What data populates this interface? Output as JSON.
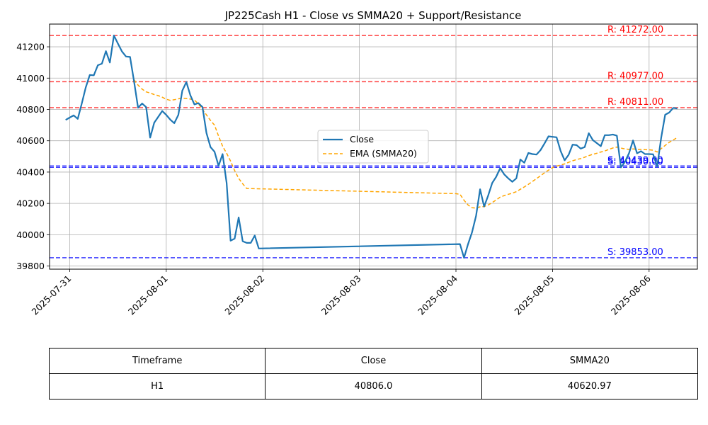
{
  "chart_data": {
    "type": "line",
    "title": "JP225Cash H1 - Close vs SMMA20 + Support/Resistance",
    "xlabel": "",
    "ylabel": "",
    "grid": true,
    "legend_position": "center-right",
    "x_ticks": [
      "2025-07-31",
      "2025-08-01",
      "2025-08-02",
      "2025-08-03",
      "2025-08-04",
      "2025-08-05",
      "2025-08-06"
    ],
    "x_range": [
      "2025-07-30T19:00",
      "2025-08-06T12:00"
    ],
    "y_ticks": [
      39800,
      40000,
      40200,
      40400,
      40600,
      40800,
      41000,
      41200
    ],
    "ylim": [
      39780,
      41345
    ],
    "series": [
      {
        "name": "Close",
        "color": "#1f77b4",
        "style": "solid",
        "points": [
          [
            "2025-07-30T23:00",
            40733
          ],
          [
            "2025-07-31T00:00",
            40748
          ],
          [
            "2025-07-31T01:00",
            40762
          ],
          [
            "2025-07-31T02:00",
            40740
          ],
          [
            "2025-07-31T03:00",
            40838
          ],
          [
            "2025-07-31T04:00",
            40940
          ],
          [
            "2025-07-31T05:00",
            41020
          ],
          [
            "2025-07-31T06:00",
            41018
          ],
          [
            "2025-07-31T07:00",
            41082
          ],
          [
            "2025-07-31T08:00",
            41092
          ],
          [
            "2025-07-31T09:00",
            41172
          ],
          [
            "2025-07-31T10:00",
            41100
          ],
          [
            "2025-07-31T11:00",
            41272
          ],
          [
            "2025-07-31T12:00",
            41220
          ],
          [
            "2025-07-31T13:00",
            41170
          ],
          [
            "2025-07-31T14:00",
            41138
          ],
          [
            "2025-07-31T15:00",
            41135
          ],
          [
            "2025-07-31T16:00",
            40980
          ],
          [
            "2025-07-31T17:00",
            40811
          ],
          [
            "2025-07-31T18:00",
            40838
          ],
          [
            "2025-07-31T19:00",
            40815
          ],
          [
            "2025-07-31T20:00",
            40620
          ],
          [
            "2025-07-31T21:00",
            40715
          ],
          [
            "2025-07-31T22:00",
            40752
          ],
          [
            "2025-07-31T23:00",
            40790
          ],
          [
            "2025-08-01T00:00",
            40765
          ],
          [
            "2025-08-01T01:00",
            40735
          ],
          [
            "2025-08-01T02:00",
            40712
          ],
          [
            "2025-08-01T03:00",
            40765
          ],
          [
            "2025-08-01T04:00",
            40920
          ],
          [
            "2025-08-01T05:00",
            40975
          ],
          [
            "2025-08-01T06:00",
            40890
          ],
          [
            "2025-08-01T07:00",
            40832
          ],
          [
            "2025-08-01T08:00",
            40840
          ],
          [
            "2025-08-01T09:00",
            40815
          ],
          [
            "2025-08-01T10:00",
            40650
          ],
          [
            "2025-08-01T11:00",
            40560
          ],
          [
            "2025-08-01T12:00",
            40530
          ],
          [
            "2025-08-01T13:00",
            40440
          ],
          [
            "2025-08-01T14:00",
            40515
          ],
          [
            "2025-08-01T15:00",
            40330
          ],
          [
            "2025-08-01T16:00",
            39962
          ],
          [
            "2025-08-01T17:00",
            39975
          ],
          [
            "2025-08-01T18:00",
            40110
          ],
          [
            "2025-08-01T19:00",
            39958
          ],
          [
            "2025-08-01T20:00",
            39948
          ],
          [
            "2025-08-01T21:00",
            39948
          ],
          [
            "2025-08-01T22:00",
            39995
          ],
          [
            "2025-08-01T23:00",
            39912
          ],
          [
            "2025-08-04T01:00",
            39940
          ],
          [
            "2025-08-04T02:00",
            39853
          ],
          [
            "2025-08-04T03:00",
            39940
          ],
          [
            "2025-08-04T04:00",
            40015
          ],
          [
            "2025-08-04T05:00",
            40120
          ],
          [
            "2025-08-04T06:00",
            40290
          ],
          [
            "2025-08-04T07:00",
            40180
          ],
          [
            "2025-08-04T08:00",
            40250
          ],
          [
            "2025-08-04T09:00",
            40330
          ],
          [
            "2025-08-04T10:00",
            40370
          ],
          [
            "2025-08-04T11:00",
            40425
          ],
          [
            "2025-08-04T12:00",
            40385
          ],
          [
            "2025-08-04T13:00",
            40360
          ],
          [
            "2025-08-04T14:00",
            40338
          ],
          [
            "2025-08-04T15:00",
            40360
          ],
          [
            "2025-08-04T16:00",
            40480
          ],
          [
            "2025-08-04T17:00",
            40460
          ],
          [
            "2025-08-04T18:00",
            40522
          ],
          [
            "2025-08-04T19:00",
            40515
          ],
          [
            "2025-08-04T20:00",
            40512
          ],
          [
            "2025-08-04T21:00",
            40540
          ],
          [
            "2025-08-04T22:00",
            40582
          ],
          [
            "2025-08-04T23:00",
            40628
          ],
          [
            "2025-08-05T00:00",
            40625
          ],
          [
            "2025-08-05T01:00",
            40622
          ],
          [
            "2025-08-05T02:00",
            40535
          ],
          [
            "2025-08-05T03:00",
            40475
          ],
          [
            "2025-08-05T04:00",
            40510
          ],
          [
            "2025-08-05T05:00",
            40575
          ],
          [
            "2025-08-05T06:00",
            40572
          ],
          [
            "2025-08-05T07:00",
            40550
          ],
          [
            "2025-08-05T08:00",
            40560
          ],
          [
            "2025-08-05T09:00",
            40648
          ],
          [
            "2025-08-05T10:00",
            40605
          ],
          [
            "2025-08-05T11:00",
            40585
          ],
          [
            "2025-08-05T12:00",
            40565
          ],
          [
            "2025-08-05T13:00",
            40636
          ],
          [
            "2025-08-05T14:00",
            40636
          ],
          [
            "2025-08-05T15:00",
            40640
          ],
          [
            "2025-08-05T16:00",
            40632
          ],
          [
            "2025-08-05T17:00",
            40430
          ],
          [
            "2025-08-05T18:00",
            40465
          ],
          [
            "2025-08-05T19:00",
            40520
          ],
          [
            "2025-08-05T20:00",
            40602
          ],
          [
            "2025-08-05T21:00",
            40520
          ],
          [
            "2025-08-05T22:00",
            40533
          ],
          [
            "2025-08-05T23:00",
            40515
          ],
          [
            "2025-08-06T00:00",
            40515
          ],
          [
            "2025-08-06T01:00",
            40513
          ],
          [
            "2025-08-06T02:00",
            40435
          ],
          [
            "2025-08-06T03:00",
            40620
          ],
          [
            "2025-08-06T04:00",
            40766
          ],
          [
            "2025-08-06T05:00",
            40780
          ],
          [
            "2025-08-06T06:00",
            40810
          ],
          [
            "2025-08-06T07:00",
            40806
          ]
        ]
      },
      {
        "name": "EMA (SMMA20)",
        "color": "#ffa500",
        "style": "dashed",
        "points": [
          [
            "2025-07-31T16:00",
            40990
          ],
          [
            "2025-07-31T17:00",
            40955
          ],
          [
            "2025-07-31T18:00",
            40930
          ],
          [
            "2025-07-31T19:00",
            40912
          ],
          [
            "2025-07-31T20:00",
            40905
          ],
          [
            "2025-07-31T21:00",
            40895
          ],
          [
            "2025-07-31T22:00",
            40888
          ],
          [
            "2025-07-31T23:00",
            40878
          ],
          [
            "2025-08-01T00:00",
            40865
          ],
          [
            "2025-08-01T01:00",
            40858
          ],
          [
            "2025-08-01T02:00",
            40862
          ],
          [
            "2025-08-01T03:00",
            40868
          ],
          [
            "2025-08-01T04:00",
            40872
          ],
          [
            "2025-08-01T05:00",
            40870
          ],
          [
            "2025-08-01T06:00",
            40866
          ],
          [
            "2025-08-01T07:00",
            40860
          ],
          [
            "2025-08-01T08:00",
            40835
          ],
          [
            "2025-08-01T09:00",
            40800
          ],
          [
            "2025-08-01T10:00",
            40765
          ],
          [
            "2025-08-01T11:00",
            40730
          ],
          [
            "2025-08-01T12:00",
            40700
          ],
          [
            "2025-08-01T13:00",
            40630
          ],
          [
            "2025-08-01T14:00",
            40565
          ],
          [
            "2025-08-01T15:00",
            40520
          ],
          [
            "2025-08-01T16:00",
            40470
          ],
          [
            "2025-08-01T17:00",
            40410
          ],
          [
            "2025-08-01T18:00",
            40360
          ],
          [
            "2025-08-01T19:00",
            40325
          ],
          [
            "2025-08-01T20:00",
            40295
          ],
          [
            "2025-08-04T00:00",
            40262
          ],
          [
            "2025-08-04T01:00",
            40258
          ],
          [
            "2025-08-04T02:00",
            40220
          ],
          [
            "2025-08-04T03:00",
            40190
          ],
          [
            "2025-08-04T04:00",
            40172
          ],
          [
            "2025-08-04T05:00",
            40170
          ],
          [
            "2025-08-04T06:00",
            40178
          ],
          [
            "2025-08-04T07:00",
            40180
          ],
          [
            "2025-08-04T08:00",
            40190
          ],
          [
            "2025-08-04T09:00",
            40205
          ],
          [
            "2025-08-04T10:00",
            40222
          ],
          [
            "2025-08-04T11:00",
            40240
          ],
          [
            "2025-08-04T12:00",
            40250
          ],
          [
            "2025-08-04T13:00",
            40258
          ],
          [
            "2025-08-04T14:00",
            40265
          ],
          [
            "2025-08-04T15:00",
            40275
          ],
          [
            "2025-08-04T16:00",
            40290
          ],
          [
            "2025-08-04T17:00",
            40305
          ],
          [
            "2025-08-04T18:00",
            40322
          ],
          [
            "2025-08-04T19:00",
            40340
          ],
          [
            "2025-08-04T20:00",
            40358
          ],
          [
            "2025-08-04T21:00",
            40376
          ],
          [
            "2025-08-04T22:00",
            40395
          ],
          [
            "2025-08-04T23:00",
            40412
          ],
          [
            "2025-08-05T00:00",
            40428
          ],
          [
            "2025-08-05T01:00",
            40438
          ],
          [
            "2025-08-05T02:00",
            40445
          ],
          [
            "2025-08-05T03:00",
            40452
          ],
          [
            "2025-08-05T04:00",
            40462
          ],
          [
            "2025-08-05T05:00",
            40472
          ],
          [
            "2025-08-05T06:00",
            40480
          ],
          [
            "2025-08-05T07:00",
            40486
          ],
          [
            "2025-08-05T08:00",
            40495
          ],
          [
            "2025-08-05T09:00",
            40505
          ],
          [
            "2025-08-05T10:00",
            40513
          ],
          [
            "2025-08-05T11:00",
            40520
          ],
          [
            "2025-08-05T12:00",
            40528
          ],
          [
            "2025-08-05T13:00",
            40535
          ],
          [
            "2025-08-05T14:00",
            40545
          ],
          [
            "2025-08-05T15:00",
            40554
          ],
          [
            "2025-08-05T16:00",
            40560
          ],
          [
            "2025-08-05T17:00",
            40553
          ],
          [
            "2025-08-05T18:00",
            40548
          ],
          [
            "2025-08-05T19:00",
            40545
          ],
          [
            "2025-08-05T20:00",
            40548
          ],
          [
            "2025-08-05T21:00",
            40545
          ],
          [
            "2025-08-05T22:00",
            40545
          ],
          [
            "2025-08-05T23:00",
            40543
          ],
          [
            "2025-08-06T00:00",
            40542
          ],
          [
            "2025-08-06T01:00",
            40540
          ],
          [
            "2025-08-06T02:00",
            40528
          ],
          [
            "2025-08-06T03:00",
            40550
          ],
          [
            "2025-08-06T04:00",
            40570
          ],
          [
            "2025-08-06T05:00",
            40590
          ],
          [
            "2025-08-06T06:00",
            40605
          ],
          [
            "2025-08-06T07:00",
            40621
          ]
        ]
      }
    ],
    "resistance_levels": [
      {
        "value": 41272,
        "label": "R: 41272.00",
        "color": "#ff0000"
      },
      {
        "value": 40977,
        "label": "R: 40977.00",
        "color": "#ff0000"
      },
      {
        "value": 40811,
        "label": "R: 40811.00",
        "color": "#ff0000"
      }
    ],
    "support_levels": [
      {
        "value": 40430,
        "label": "S: 40430.00",
        "color": "#0000ff"
      },
      {
        "value": 40439,
        "label": "S: 40439.00",
        "color": "#0000ff"
      },
      {
        "value": 39853,
        "label": "S: 39853.00",
        "color": "#0000ff"
      }
    ],
    "table": {
      "columns": [
        "Timeframe",
        "Close",
        "SMMA20"
      ],
      "rows": [
        [
          "H1",
          "40806.0",
          "40620.97"
        ]
      ]
    }
  }
}
